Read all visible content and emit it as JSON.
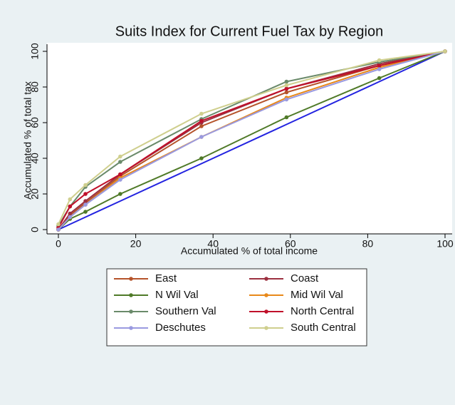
{
  "chart_data": {
    "type": "line",
    "title": "Suits Index for Current Fuel Tax by Region",
    "xlabel": "Accumulated % of total income",
    "ylabel": "Accumulated % of total tax",
    "x": [
      0,
      3,
      7,
      16,
      37,
      59,
      83,
      100
    ],
    "xlim": [
      0,
      100
    ],
    "xticks": [
      0,
      20,
      40,
      60,
      80,
      100
    ],
    "ylim": [
      0,
      100
    ],
    "yticks": [
      0,
      20,
      40,
      60,
      80,
      100
    ],
    "series": [
      {
        "color": "#2323e0",
        "values": [
          0,
          3,
          7,
          16,
          37,
          59,
          83,
          100
        ]
      },
      {
        "name": "East",
        "color": "#b5532a",
        "values": [
          0,
          8,
          15,
          30,
          58,
          77,
          92,
          100
        ]
      },
      {
        "name": "Coast",
        "color": "#9c3040",
        "values": [
          0,
          9,
          16,
          31,
          60,
          79,
          93,
          100
        ]
      },
      {
        "name": "N Wil Val",
        "color": "#4f7a28",
        "values": [
          0,
          6,
          10,
          20,
          40,
          63,
          85,
          100
        ]
      },
      {
        "name": "Mid Wil Val",
        "color": "#e8891a",
        "values": [
          0,
          7,
          14,
          29,
          52,
          74,
          91,
          100
        ]
      },
      {
        "name": "Southern Val",
        "color": "#6a8a6a",
        "values": [
          2,
          13,
          24,
          38,
          62,
          83,
          94,
          100
        ]
      },
      {
        "name": "North Central",
        "color": "#c0102a",
        "values": [
          1,
          13,
          20,
          31,
          61,
          79,
          92,
          100
        ]
      },
      {
        "name": "Deschutes",
        "color": "#9a9ae0",
        "values": [
          0,
          7,
          14,
          28,
          52,
          73,
          90,
          100
        ]
      },
      {
        "name": "South Central",
        "color": "#cfcf8e",
        "values": [
          3,
          17,
          25,
          41,
          65,
          81,
          95,
          100
        ]
      }
    ]
  }
}
